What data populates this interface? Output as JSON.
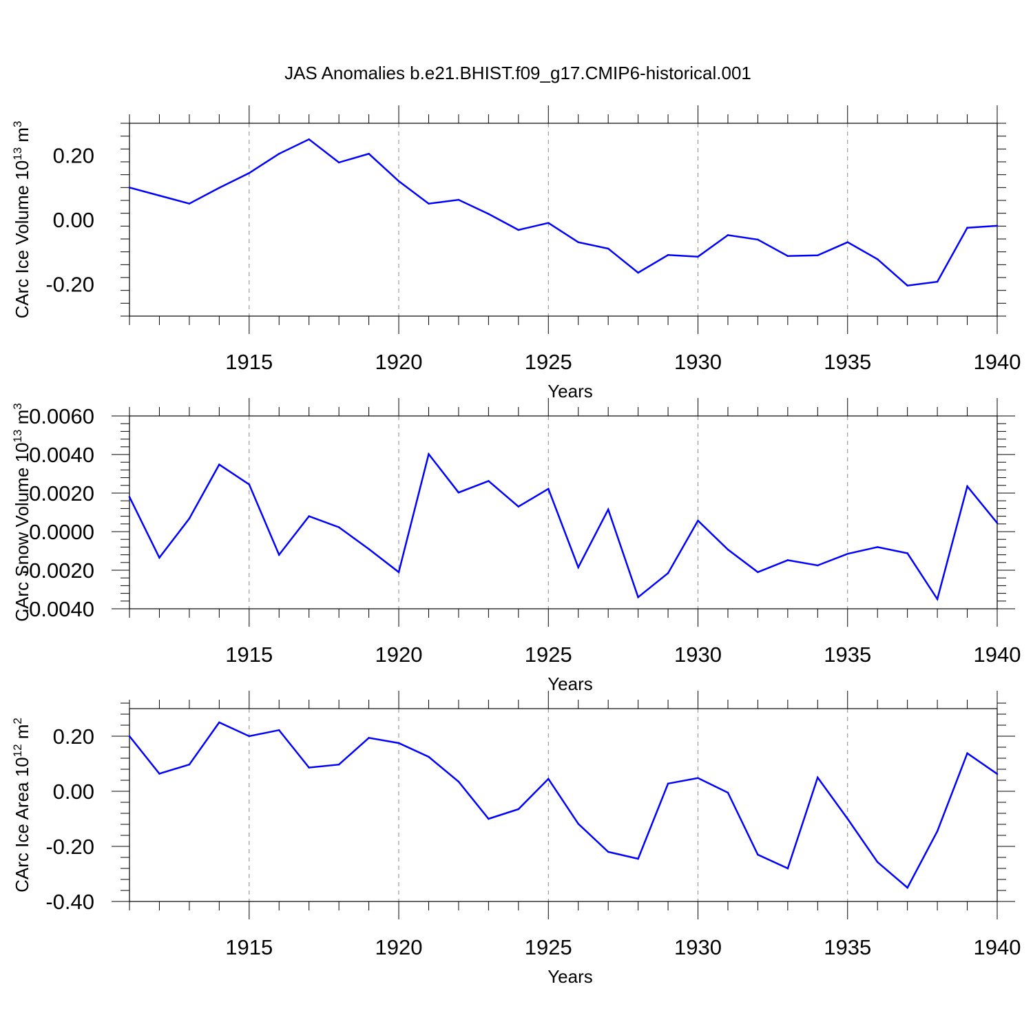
{
  "title": "JAS Anomalies b.e21.BHIST.f09_g17.CMIP6-historical.001",
  "colors": {
    "line": "#0000ff",
    "axis": "#000000",
    "grid": "#888888"
  },
  "chart_data": [
    {
      "type": "line",
      "title": "JAS Anomalies b.e21.BHIST.f09_g17.CMIP6-historical.001",
      "xlabel": "Years",
      "ylabel": "CArc Ice Volume 10",
      "ylabel_sup": "13",
      "ylabel_unit": " m",
      "ylabel_unit_sup": "3",
      "xlim": [
        1911,
        1940
      ],
      "ylim": [
        -0.3,
        0.3
      ],
      "x_ticks": [
        "1915",
        "1920",
        "1925",
        "1930",
        "1935",
        "1940"
      ],
      "y_ticks": [
        0.2,
        0.0,
        -0.2
      ],
      "y_tick_labels": [
        "0.20",
        "0.00",
        "-0.20"
      ],
      "grid": "vertical dashed at major year ticks",
      "x": [
        1911,
        1912,
        1913,
        1914,
        1915,
        1916,
        1917,
        1918,
        1919,
        1920,
        1921,
        1922,
        1923,
        1924,
        1925,
        1926,
        1927,
        1928,
        1929,
        1930,
        1931,
        1932,
        1933,
        1934,
        1935,
        1936,
        1937,
        1938,
        1939,
        1940
      ],
      "values": [
        0.1,
        0.075,
        0.05,
        0.099,
        0.145,
        0.205,
        0.25,
        0.178,
        0.205,
        0.12,
        0.05,
        0.062,
        0.018,
        -0.032,
        -0.01,
        -0.07,
        -0.09,
        -0.165,
        -0.11,
        -0.115,
        -0.048,
        -0.062,
        -0.113,
        -0.111,
        -0.07,
        -0.123,
        -0.205,
        -0.193,
        -0.025,
        -0.019
      ]
    },
    {
      "type": "line",
      "xlabel": "Years",
      "ylabel": "CArc Snow Volume 10",
      "ylabel_sup": "13",
      "ylabel_unit": " m",
      "ylabel_unit_sup": "3",
      "xlim": [
        1911,
        1940
      ],
      "ylim": [
        -0.004,
        0.006
      ],
      "x_ticks": [
        "1915",
        "1920",
        "1925",
        "1930",
        "1935",
        "1940"
      ],
      "y_ticks": [
        0.006,
        0.004,
        0.002,
        0.0,
        -0.002,
        -0.004
      ],
      "y_tick_labels": [
        "0.0060",
        "0.0040",
        "0.0020",
        "0.0000",
        "-0.0020",
        "-0.0040"
      ],
      "grid": "vertical dashed at major year ticks",
      "x": [
        1911,
        1912,
        1913,
        1914,
        1915,
        1916,
        1917,
        1918,
        1919,
        1920,
        1921,
        1922,
        1923,
        1924,
        1925,
        1926,
        1927,
        1928,
        1929,
        1930,
        1931,
        1932,
        1933,
        1934,
        1935,
        1936,
        1937,
        1938,
        1939,
        1940
      ],
      "values": [
        0.0018,
        -0.00135,
        0.00068,
        0.00348,
        0.00245,
        -0.0012,
        0.0008,
        0.00023,
        -0.0009,
        -0.0021,
        0.00402,
        0.00203,
        0.00263,
        0.0013,
        0.00222,
        -0.00185,
        0.00115,
        -0.0034,
        -0.00215,
        0.00057,
        -0.00093,
        -0.0021,
        -0.00148,
        -0.00175,
        -0.00115,
        -0.0008,
        -0.00112,
        -0.0035,
        0.00235,
        0.00045
      ]
    },
    {
      "type": "line",
      "xlabel": "Years",
      "ylabel": "CArc Ice Area 10",
      "ylabel_sup": "12",
      "ylabel_unit": " m",
      "ylabel_unit_sup": "2",
      "xlim": [
        1911,
        1940
      ],
      "ylim": [
        -0.4,
        0.3
      ],
      "x_ticks": [
        "1915",
        "1920",
        "1925",
        "1930",
        "1935",
        "1940"
      ],
      "y_ticks": [
        0.2,
        0.0,
        -0.2,
        -0.4
      ],
      "y_tick_labels": [
        "0.20",
        "0.00",
        "-0.20",
        "-0.40"
      ],
      "grid": "vertical dashed at major year ticks",
      "x": [
        1911,
        1912,
        1913,
        1914,
        1915,
        1916,
        1917,
        1918,
        1919,
        1920,
        1921,
        1922,
        1923,
        1924,
        1925,
        1926,
        1927,
        1928,
        1929,
        1930,
        1931,
        1932,
        1933,
        1934,
        1935,
        1936,
        1937,
        1938,
        1939,
        1940
      ],
      "values": [
        0.2,
        0.064,
        0.097,
        0.25,
        0.2,
        0.222,
        0.086,
        0.097,
        0.194,
        0.175,
        0.125,
        0.035,
        -0.1,
        -0.065,
        0.045,
        -0.118,
        -0.22,
        -0.245,
        0.028,
        0.048,
        -0.005,
        -0.23,
        -0.28,
        0.05,
        -0.1,
        -0.257,
        -0.35,
        -0.145,
        0.138,
        0.063
      ]
    }
  ]
}
